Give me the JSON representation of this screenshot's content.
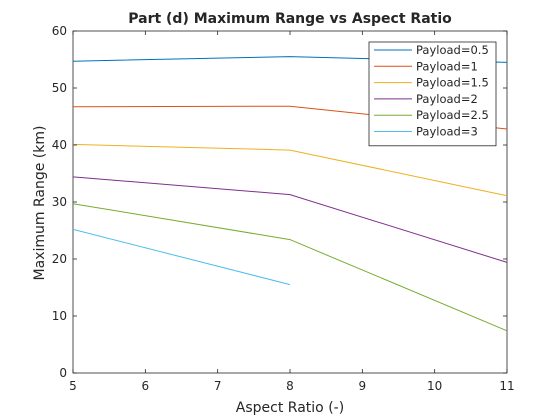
{
  "colors": {
    "background": "#ffffff",
    "axes": "#262626",
    "series": [
      "#0072BD",
      "#D95319",
      "#EDB120",
      "#7E2F8E",
      "#77AC30",
      "#4DBEEE"
    ]
  },
  "chart_data": {
    "type": "line",
    "title": "Part (d) Maximum Range vs Aspect Ratio",
    "xlabel": "Aspect Ratio (-)",
    "ylabel": "Maximum Range (km)",
    "xlim": [
      5,
      11
    ],
    "ylim": [
      0,
      60
    ],
    "xticks": [
      5,
      6,
      7,
      8,
      9,
      10,
      11
    ],
    "yticks": [
      0,
      10,
      20,
      30,
      40,
      50,
      60
    ],
    "grid": false,
    "legend_position": "top-right",
    "series": [
      {
        "name": "Payload=0.5",
        "x": [
          5,
          8,
          11
        ],
        "y": [
          54.7,
          55.5,
          54.5
        ]
      },
      {
        "name": "Payload=1",
        "x": [
          5,
          8,
          11
        ],
        "y": [
          46.7,
          46.8,
          42.8
        ]
      },
      {
        "name": "Payload=1.5",
        "x": [
          5,
          8,
          11
        ],
        "y": [
          40.1,
          39.1,
          31.1
        ]
      },
      {
        "name": "Payload=2",
        "x": [
          5,
          8,
          11
        ],
        "y": [
          34.4,
          31.3,
          19.4
        ]
      },
      {
        "name": "Payload=2.5",
        "x": [
          5,
          8,
          11
        ],
        "y": [
          29.7,
          23.4,
          7.4
        ]
      },
      {
        "name": "Payload=3",
        "x": [
          5,
          8
        ],
        "y": [
          25.2,
          15.5
        ]
      }
    ]
  }
}
